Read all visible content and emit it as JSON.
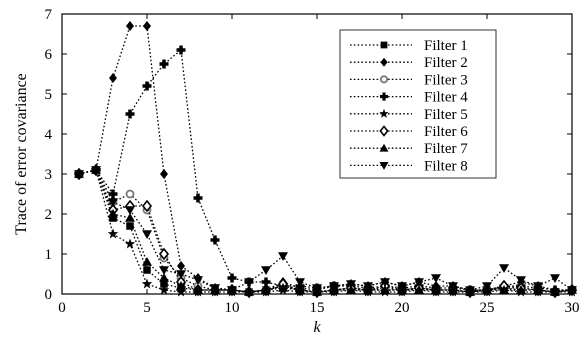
{
  "chart_data": {
    "type": "line",
    "xlabel": "k",
    "ylabel": "Trace of error covariance",
    "xlim": [
      0,
      30
    ],
    "ylim": [
      0,
      7
    ],
    "xticks": [
      0,
      5,
      10,
      15,
      20,
      25,
      30
    ],
    "yticks": [
      0,
      1,
      2,
      3,
      4,
      5,
      6,
      7
    ],
    "grid": false,
    "legend_position": "top-right",
    "x": [
      1,
      2,
      3,
      4,
      5,
      6,
      7,
      8,
      9,
      10,
      11,
      12,
      13,
      14,
      15,
      16,
      17,
      18,
      19,
      20,
      21,
      22,
      23,
      24,
      25,
      26,
      27,
      28,
      29,
      30
    ],
    "series": [
      {
        "name": "Filter 1",
        "marker": "square",
        "color": "#000000",
        "values": [
          3.0,
          3.1,
          1.9,
          1.7,
          0.6,
          0.25,
          0.15,
          0.1,
          0.1,
          0.1,
          0.05,
          0.1,
          0.2,
          0.1,
          0.05,
          0.1,
          0.15,
          0.1,
          0.1,
          0.1,
          0.15,
          0.1,
          0.1,
          0.05,
          0.1,
          0.15,
          0.1,
          0.1,
          0.05,
          0.1
        ]
      },
      {
        "name": "Filter 2",
        "marker": "diamond-filled",
        "color": "#000000",
        "values": [
          3.0,
          3.1,
          5.4,
          6.7,
          6.7,
          3.0,
          0.7,
          0.4,
          0.15,
          0.1,
          0.05,
          0.1,
          0.3,
          0.15,
          0.1,
          0.2,
          0.25,
          0.2,
          0.3,
          0.2,
          0.3,
          0.2,
          0.2,
          0.1,
          0.1,
          0.2,
          0.3,
          0.2,
          0.1,
          0.1
        ]
      },
      {
        "name": "Filter 3",
        "marker": "circle",
        "color": "#777777",
        "values": [
          3.0,
          3.1,
          2.3,
          2.5,
          2.1,
          0.9,
          0.4,
          0.2,
          0.1,
          0.1,
          0.05,
          0.1,
          0.2,
          0.1,
          0.05,
          0.1,
          0.15,
          0.1,
          0.15,
          0.1,
          0.15,
          0.1,
          0.1,
          0.05,
          0.1,
          0.15,
          0.15,
          0.1,
          0.05,
          0.1
        ]
      },
      {
        "name": "Filter 4",
        "marker": "plus-filled",
        "color": "#000000",
        "values": [
          3.0,
          3.1,
          2.5,
          4.5,
          5.2,
          5.75,
          6.1,
          2.4,
          1.35,
          0.4,
          0.3,
          0.3,
          0.2,
          0.2,
          0.15,
          0.2,
          0.2,
          0.15,
          0.2,
          0.15,
          0.2,
          0.15,
          0.15,
          0.1,
          0.1,
          0.2,
          0.2,
          0.15,
          0.1,
          0.1
        ]
      },
      {
        "name": "Filter 5",
        "marker": "star",
        "color": "#000000",
        "values": [
          3.0,
          3.1,
          1.5,
          1.25,
          0.25,
          0.1,
          0.05,
          0.05,
          0.05,
          0.05,
          0.05,
          0.05,
          0.1,
          0.05,
          0.05,
          0.05,
          0.1,
          0.05,
          0.05,
          0.05,
          0.1,
          0.05,
          0.05,
          0.05,
          0.05,
          0.1,
          0.05,
          0.05,
          0.05,
          0.05
        ]
      },
      {
        "name": "Filter 6",
        "marker": "diamond-open",
        "color": "#000000",
        "values": [
          3.0,
          3.1,
          2.1,
          2.2,
          2.2,
          1.0,
          0.3,
          0.1,
          0.1,
          0.1,
          0.05,
          0.1,
          0.25,
          0.1,
          0.05,
          0.1,
          0.15,
          0.1,
          0.2,
          0.1,
          0.15,
          0.1,
          0.1,
          0.05,
          0.1,
          0.2,
          0.15,
          0.1,
          0.05,
          0.1
        ]
      },
      {
        "name": "Filter 7",
        "marker": "triangle-up",
        "color": "#000000",
        "values": [
          3.0,
          3.1,
          2.0,
          1.9,
          0.8,
          0.4,
          0.2,
          0.1,
          0.1,
          0.1,
          0.05,
          0.1,
          0.15,
          0.1,
          0.05,
          0.1,
          0.1,
          0.1,
          0.1,
          0.1,
          0.1,
          0.1,
          0.1,
          0.05,
          0.1,
          0.1,
          0.1,
          0.1,
          0.05,
          0.1
        ]
      },
      {
        "name": "Filter 8",
        "marker": "triangle-down",
        "color": "#000000",
        "values": [
          3.0,
          3.1,
          2.3,
          2.1,
          1.5,
          0.6,
          0.5,
          0.35,
          0.15,
          0.1,
          0.3,
          0.6,
          0.95,
          0.3,
          0.15,
          0.2,
          0.25,
          0.2,
          0.3,
          0.2,
          0.3,
          0.4,
          0.2,
          0.1,
          0.2,
          0.65,
          0.35,
          0.2,
          0.4,
          0.1
        ]
      }
    ]
  }
}
